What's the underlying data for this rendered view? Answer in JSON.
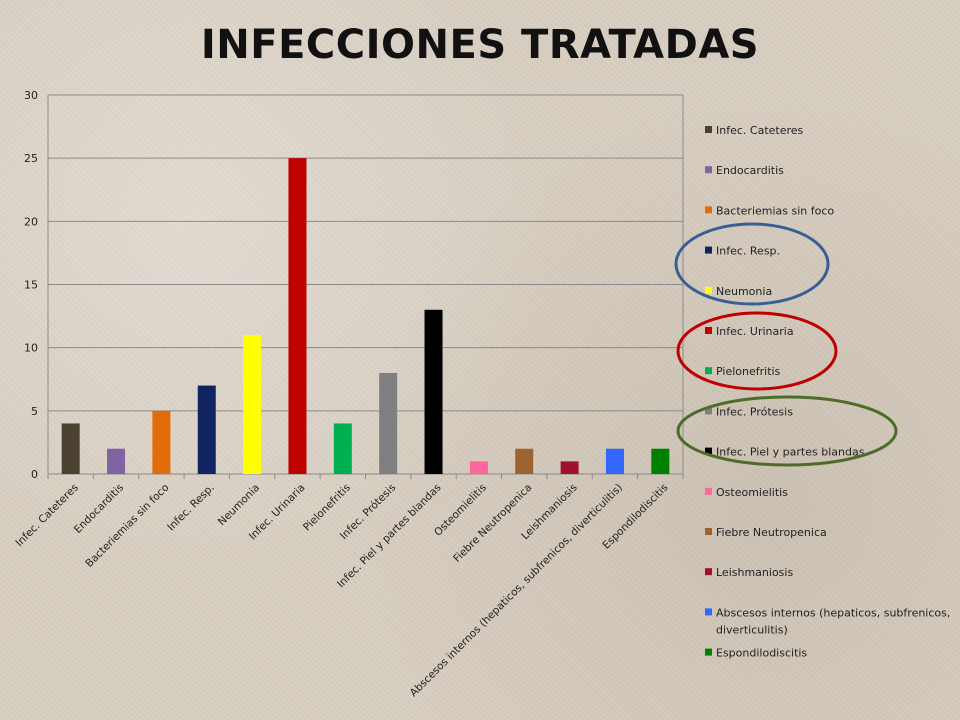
{
  "title": "INFECCIONES  TRATADAS",
  "chart_data": {
    "type": "bar",
    "ylim": [
      0,
      30
    ],
    "yticks": [
      0,
      5,
      10,
      15,
      20,
      25,
      30
    ],
    "grid": true,
    "legend_position": "right",
    "categories": [
      "Infec. Cateteres",
      "Endocarditis",
      "Bacteriemias  sin  foco",
      "Infec. Resp.",
      "Neumonia",
      "Infec. Urinaria",
      "Pielonefritis",
      "Infec. Prótesis",
      "Infec. Piel y partes blandas",
      "Osteomielitis",
      "Fiebre Neutropenica",
      "Leishmaniosis",
      "Abscesos  internos (hepaticos, subfrenicos, diverticulitis)",
      "Espondilodiscitis"
    ],
    "values": [
      4,
      2,
      5,
      7,
      11,
      25,
      4,
      8,
      13,
      1,
      2,
      1,
      2,
      2
    ],
    "colors": [
      "#4a4130",
      "#8064a2",
      "#e36c0a",
      "#0f2461",
      "#ffff00",
      "#c00000",
      "#00b050",
      "#7f7f7f",
      "#000000",
      "#ff6699",
      "#9c6333",
      "#a0102f",
      "#3366ff",
      "#008000"
    ],
    "legend": [
      "Infec. Cateteres",
      "Endocarditis",
      "Bacteriemias  sin  foco",
      "Infec. Resp.",
      "Neumonia",
      "Infec. Urinaria",
      "Pielonefritis",
      "Infec. Prótesis",
      "Infec. Piel y partes blandas",
      "Osteomielitis",
      "Fiebre Neutropenica",
      "Leishmaniosis",
      [
        "Abscesos  internos (hepaticos, subfrenicos,",
        "diverticulitis)"
      ],
      "Espondilodiscitis"
    ]
  },
  "annotations": {
    "ellipse_colors": [
      "#3a5f95",
      "#c00000",
      "#4f6b2a"
    ]
  }
}
